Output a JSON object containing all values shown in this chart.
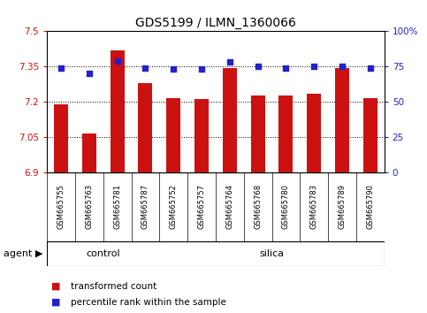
{
  "title": "GDS5199 / ILMN_1360066",
  "samples": [
    "GSM665755",
    "GSM665763",
    "GSM665781",
    "GSM665787",
    "GSM665752",
    "GSM665757",
    "GSM665764",
    "GSM665768",
    "GSM665780",
    "GSM665783",
    "GSM665789",
    "GSM665790"
  ],
  "red_values": [
    7.19,
    7.065,
    7.42,
    7.28,
    7.215,
    7.21,
    7.345,
    7.225,
    7.225,
    7.235,
    7.345,
    7.215
  ],
  "blue_values": [
    74,
    70,
    79,
    74,
    73,
    73,
    78,
    75,
    74,
    75,
    75,
    74
  ],
  "ylim_left": [
    6.9,
    7.5
  ],
  "ylim_right": [
    0,
    100
  ],
  "yticks_left": [
    6.9,
    7.05,
    7.2,
    7.35,
    7.5
  ],
  "yticks_right": [
    0,
    25,
    50,
    75,
    100
  ],
  "ytick_labels_left": [
    "6.9",
    "7.05",
    "7.2",
    "7.35",
    "7.5"
  ],
  "ytick_labels_right": [
    "0",
    "25",
    "50",
    "75",
    "100%"
  ],
  "n_control": 4,
  "n_silica": 8,
  "bar_color": "#cc1111",
  "dot_color": "#2222cc",
  "plot_bg": "#ffffff",
  "control_label": "control",
  "silica_label": "silica",
  "agent_label": "agent",
  "legend_red": "transformed count",
  "legend_blue": "percentile rank within the sample",
  "green_color": "#66ee66",
  "gray_color": "#cccccc",
  "title_fontsize": 10,
  "tick_fontsize": 7.5,
  "label_fontsize": 8
}
